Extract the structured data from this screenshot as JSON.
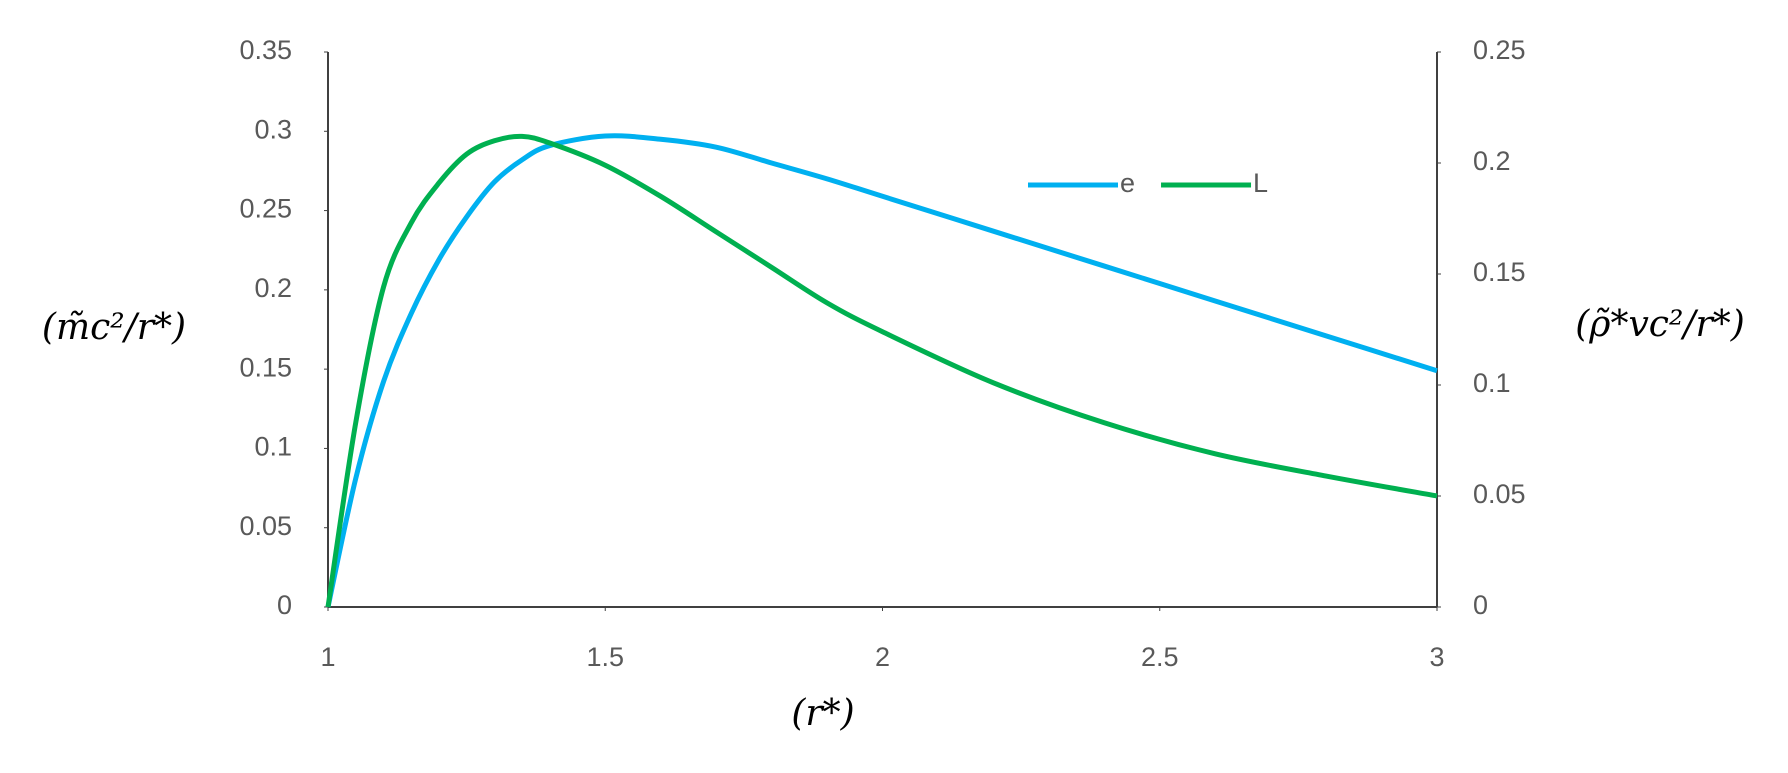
{
  "chart_data": {
    "type": "line",
    "x_label": "(r*)",
    "y_label": "(m̃c²/r*)",
    "y2_label": "(ρ̃*vc²/r*)",
    "x": [
      1,
      1.05,
      1.1,
      1.15,
      1.2,
      1.25,
      1.3,
      1.35,
      1.4,
      1.5,
      1.6,
      1.7,
      1.8,
      1.9,
      2.0,
      2.2,
      2.4,
      2.6,
      2.8,
      3.0
    ],
    "series": [
      {
        "name": "e",
        "color": "#00b0f0",
        "axis": "y",
        "values": [
          0,
          0.081,
          0.142,
          0.185,
          0.219,
          0.246,
          0.268,
          0.282,
          0.291,
          0.297,
          0.295,
          0.29,
          0.28,
          0.27,
          0.259,
          0.237,
          0.215,
          0.193,
          0.171,
          0.149
        ]
      },
      {
        "name": "L",
        "color": "#00b050",
        "axis": "y2",
        "values": [
          0,
          0.083,
          0.144,
          0.173,
          0.191,
          0.204,
          0.21,
          0.212,
          0.209,
          0.199,
          0.185,
          0.169,
          0.153,
          0.137,
          0.124,
          0.101,
          0.083,
          0.069,
          0.059,
          0.05
        ]
      }
    ],
    "xlim": [
      1,
      3
    ],
    "xticks": [
      1,
      1.5,
      2,
      2.5,
      3
    ],
    "ylim": [
      0,
      0.35
    ],
    "yticks": [
      0,
      0.05,
      0.1,
      0.15,
      0.2,
      0.25,
      0.3,
      0.35
    ],
    "y2lim": [
      0,
      0.25
    ],
    "y2ticks": [
      0,
      0.05,
      0.1,
      0.15,
      0.2,
      0.25
    ],
    "grid": false,
    "legend_position": "upper center right"
  }
}
